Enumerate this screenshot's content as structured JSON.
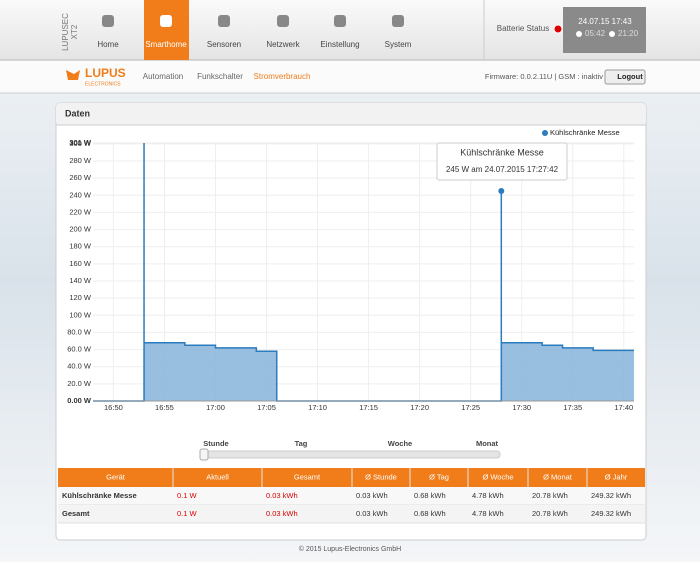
{
  "header": {
    "brand_line1": "LUPUSEC",
    "brand_line2": "XT2",
    "nav": [
      "Home",
      "Smarthome",
      "Sensoren",
      "Netzwerk",
      "Einstellung",
      "System"
    ],
    "active_nav": 1,
    "battery_label": "Batterie Status",
    "clock": {
      "datetime": "24.07.15 17:43",
      "sunrise": "05:42",
      "sunset": "21:20"
    }
  },
  "subnav": {
    "logo": "LUPUS",
    "logo_sub": "ELECTRONICS",
    "links": [
      "Automation",
      "Funkschalter",
      "Stromverbrauch"
    ],
    "active_link": 2,
    "firmware": "Firmware: 0.0.2.11U | GSM : inaktiv",
    "logout": "Logout"
  },
  "panel": {
    "title": "Daten"
  },
  "chart_data": {
    "type": "step-area",
    "series": [
      {
        "name": "Kühlschränke Messe",
        "color": "#2b7bbf",
        "fill": "#86b3db",
        "x": [
          "16:48",
          "16:53",
          "16:53",
          "16:53",
          "16:57",
          "17:00",
          "17:04",
          "17:06",
          "17:06",
          "17:28",
          "17:28",
          "17:28",
          "17:32",
          "17:34",
          "17:37",
          "17:41"
        ],
        "values": [
          0,
          301,
          80,
          68,
          65,
          62,
          58,
          34,
          0,
          245,
          80,
          68,
          65,
          62,
          59,
          59
        ]
      }
    ],
    "xlim": [
      "16:48",
      "17:41"
    ],
    "xticks": [
      "16:50",
      "16:55",
      "17:00",
      "17:05",
      "17:10",
      "17:15",
      "17:20",
      "17:25",
      "17:30",
      "17:35",
      "17:40"
    ],
    "ylim": [
      0,
      301
    ],
    "yticks": [
      {
        "value": 0,
        "label": "0.00 W"
      },
      {
        "value": 20,
        "label": "20.0 W"
      },
      {
        "value": 40,
        "label": "40.0 W"
      },
      {
        "value": 60,
        "label": "60.0 W"
      },
      {
        "value": 80,
        "label": "80.0 W"
      },
      {
        "value": 100,
        "label": "100 W"
      },
      {
        "value": 120,
        "label": "120 W"
      },
      {
        "value": 140,
        "label": "140 W"
      },
      {
        "value": 160,
        "label": "160 W"
      },
      {
        "value": 180,
        "label": "180 W"
      },
      {
        "value": 200,
        "label": "200 W"
      },
      {
        "value": 220,
        "label": "220 W"
      },
      {
        "value": 240,
        "label": "240 W"
      },
      {
        "value": 260,
        "label": "260 W"
      },
      {
        "value": 280,
        "label": "280 W"
      },
      {
        "value": 300,
        "label": "300 W"
      },
      {
        "value": 301,
        "label": "301 W"
      }
    ],
    "grid": true,
    "legend": "top-right",
    "highlight_point": 9,
    "tooltip": {
      "title": "Kühlschränke Messe",
      "text": "245 W am 24.07.2015 17:27:42"
    }
  },
  "range": {
    "options": [
      "Stunde",
      "Tag",
      "Woche",
      "Monat"
    ]
  },
  "table": {
    "header": [
      "Gerät",
      "Aktuell",
      "Gesamt",
      "Ø Stunde",
      "Ø Tag",
      "Ø Woche",
      "Ø Monat",
      "Ø Jahr"
    ],
    "rows": [
      [
        "Kühlschränke Messe",
        "0.1 W",
        "0.03 kWh",
        "0.03 kWh",
        "0.68 kWh",
        "4.78 kWh",
        "20.78 kWh",
        "249.32 kWh"
      ],
      [
        "Gesamt",
        "0.1 W",
        "0.03 kWh",
        "0.03 kWh",
        "0.68 kWh",
        "4.78 kWh",
        "20.78 kWh",
        "249.32 kWh"
      ]
    ]
  },
  "footer": "© 2015 Lupus-Electronics GmbH"
}
